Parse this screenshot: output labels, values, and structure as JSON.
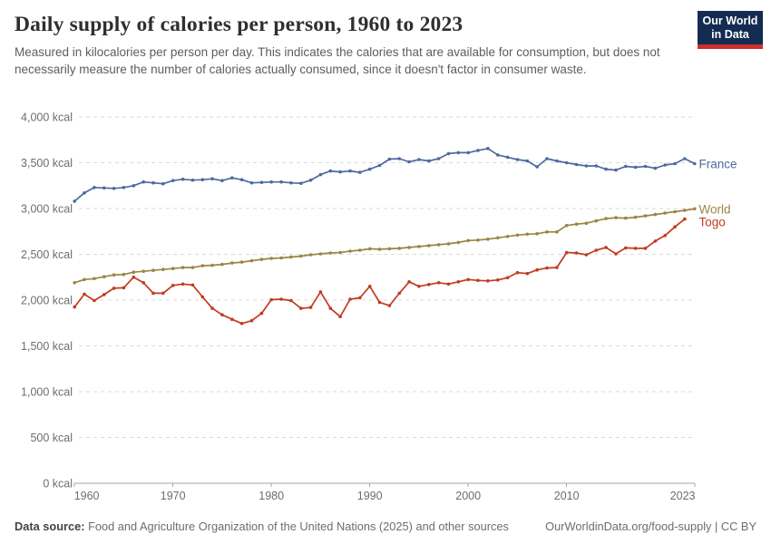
{
  "header": {
    "title": "Daily supply of calories per person, 1960 to 2023",
    "subtitle": "Measured in kilocalories per person per day. This indicates the calories that are available for consumption, but does not necessarily measure the number of calories actually consumed, since it doesn't factor in consumer waste.",
    "logo_line1": "Our World",
    "logo_line2": "in Data",
    "logo_bg_color": "#142c52",
    "logo_accent_color": "#cc3029"
  },
  "chart_data": {
    "type": "line",
    "title": "Daily supply of calories per person, 1960 to 2023",
    "xlabel": "",
    "ylabel": "kcal",
    "xlim": [
      1960,
      2023
    ],
    "ylim": [
      0,
      4000
    ],
    "grid": "horizontal-dashed",
    "grid_color": "#dadada",
    "axis_color": "#a5a5a5",
    "yticks": [
      {
        "value": 0,
        "label": "0 kcal"
      },
      {
        "value": 500,
        "label": "500 kcal"
      },
      {
        "value": 1000,
        "label": "1,000 kcal"
      },
      {
        "value": 1500,
        "label": "1,500 kcal"
      },
      {
        "value": 2000,
        "label": "2,000 kcal"
      },
      {
        "value": 2500,
        "label": "2,500 kcal"
      },
      {
        "value": 3000,
        "label": "3,000 kcal"
      },
      {
        "value": 3500,
        "label": "3,500 kcal"
      },
      {
        "value": 4000,
        "label": "4,000 kcal"
      }
    ],
    "xticks": [
      {
        "year": 1960,
        "label": "1960"
      },
      {
        "year": 1970,
        "label": "1970"
      },
      {
        "year": 1980,
        "label": "1980"
      },
      {
        "year": 1990,
        "label": "1990"
      },
      {
        "year": 2000,
        "label": "2000"
      },
      {
        "year": 2010,
        "label": "2010"
      },
      {
        "year": 2023,
        "label": "2023"
      }
    ],
    "legend_position": "end-of-line-labels",
    "series": [
      {
        "name": "France",
        "color": "#4c6a9f",
        "start_year": 1960,
        "values": [
          3080,
          3170,
          3230,
          3225,
          3220,
          3230,
          3250,
          3290,
          3280,
          3270,
          3305,
          3320,
          3310,
          3315,
          3325,
          3305,
          3335,
          3315,
          3280,
          3285,
          3290,
          3290,
          3280,
          3275,
          3310,
          3370,
          3410,
          3400,
          3410,
          3395,
          3430,
          3470,
          3540,
          3545,
          3510,
          3535,
          3520,
          3545,
          3600,
          3610,
          3610,
          3635,
          3655,
          3585,
          3560,
          3535,
          3520,
          3455,
          3545,
          3520,
          3500,
          3480,
          3465,
          3465,
          3430,
          3420,
          3460,
          3450,
          3460,
          3440,
          3475,
          3490,
          3545,
          3490
        ]
      },
      {
        "name": "World",
        "color": "#9c8445",
        "start_year": 1960,
        "values": [
          2190,
          2225,
          2235,
          2255,
          2275,
          2280,
          2305,
          2315,
          2325,
          2335,
          2345,
          2355,
          2355,
          2375,
          2380,
          2390,
          2405,
          2415,
          2430,
          2445,
          2455,
          2460,
          2470,
          2480,
          2495,
          2505,
          2515,
          2520,
          2535,
          2545,
          2560,
          2555,
          2560,
          2565,
          2575,
          2585,
          2595,
          2605,
          2615,
          2630,
          2650,
          2655,
          2665,
          2680,
          2695,
          2710,
          2720,
          2725,
          2745,
          2745,
          2815,
          2830,
          2840,
          2865,
          2890,
          2900,
          2895,
          2905,
          2920,
          2935,
          2950,
          2965,
          2980,
          2997
        ]
      },
      {
        "name": "Togo",
        "color": "#c13b1f",
        "start_year": 1960,
        "values": [
          1925,
          2065,
          1995,
          2060,
          2130,
          2135,
          2250,
          2190,
          2075,
          2075,
          2160,
          2175,
          2165,
          2035,
          1910,
          1840,
          1790,
          1745,
          1775,
          1855,
          2005,
          2010,
          1995,
          1910,
          1920,
          2090,
          1910,
          1820,
          2010,
          2025,
          2150,
          1975,
          1940,
          2075,
          2200,
          2150,
          2170,
          2190,
          2175,
          2200,
          2225,
          2215,
          2210,
          2220,
          2245,
          2300,
          2290,
          2330,
          2350,
          2355,
          2520,
          2515,
          2495,
          2545,
          2575,
          2505,
          2570,
          2565,
          2565,
          2645,
          2705,
          2800,
          2885
        ]
      }
    ]
  },
  "footer": {
    "source_label": "Data source:",
    "source_text": " Food and Agriculture Organization of the United Nations (2025) and other sources",
    "link": "OurWorldinData.org/food-supply | CC BY"
  }
}
